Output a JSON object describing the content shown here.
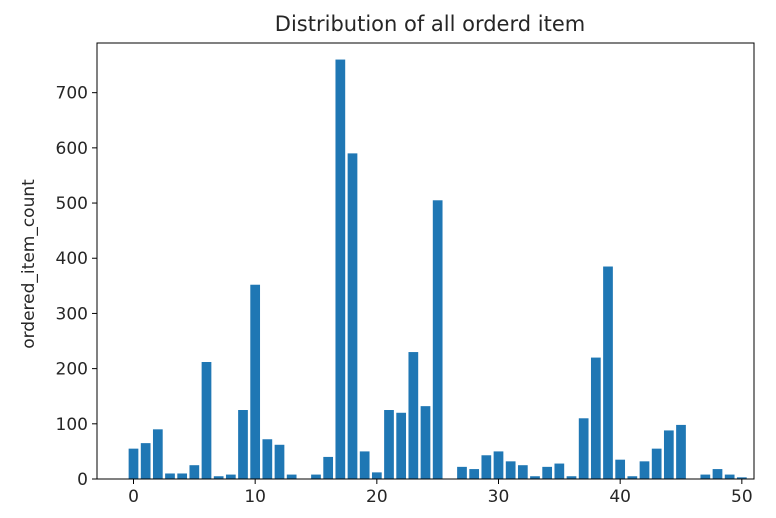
{
  "chart_data": {
    "type": "bar",
    "title": "Distribution of all orderd item",
    "xlabel": "",
    "ylabel": "ordered_item_count",
    "xlim": [
      -3,
      51
    ],
    "ylim": [
      0,
      790
    ],
    "xticks": [
      0,
      10,
      20,
      30,
      40,
      50
    ],
    "yticks": [
      0,
      100,
      200,
      300,
      400,
      500,
      600,
      700
    ],
    "bar_color": "#1f77b4",
    "grid": false,
    "x": [
      0,
      1,
      2,
      3,
      4,
      5,
      6,
      7,
      8,
      9,
      10,
      11,
      12,
      13,
      14,
      15,
      16,
      17,
      18,
      19,
      20,
      21,
      22,
      23,
      24,
      25,
      26,
      27,
      28,
      29,
      30,
      31,
      32,
      33,
      34,
      35,
      36,
      37,
      38,
      39,
      40,
      41,
      42,
      43,
      44,
      45,
      46,
      47,
      48,
      49,
      50
    ],
    "values": [
      55,
      65,
      90,
      10,
      10,
      25,
      212,
      5,
      8,
      125,
      352,
      72,
      62,
      8,
      0,
      8,
      40,
      760,
      590,
      50,
      12,
      125,
      120,
      230,
      132,
      505,
      0,
      22,
      18,
      43,
      50,
      32,
      25,
      5,
      22,
      28,
      5,
      110,
      220,
      385,
      35,
      5,
      32,
      55,
      88,
      98,
      0,
      8,
      18,
      8,
      3
    ]
  }
}
